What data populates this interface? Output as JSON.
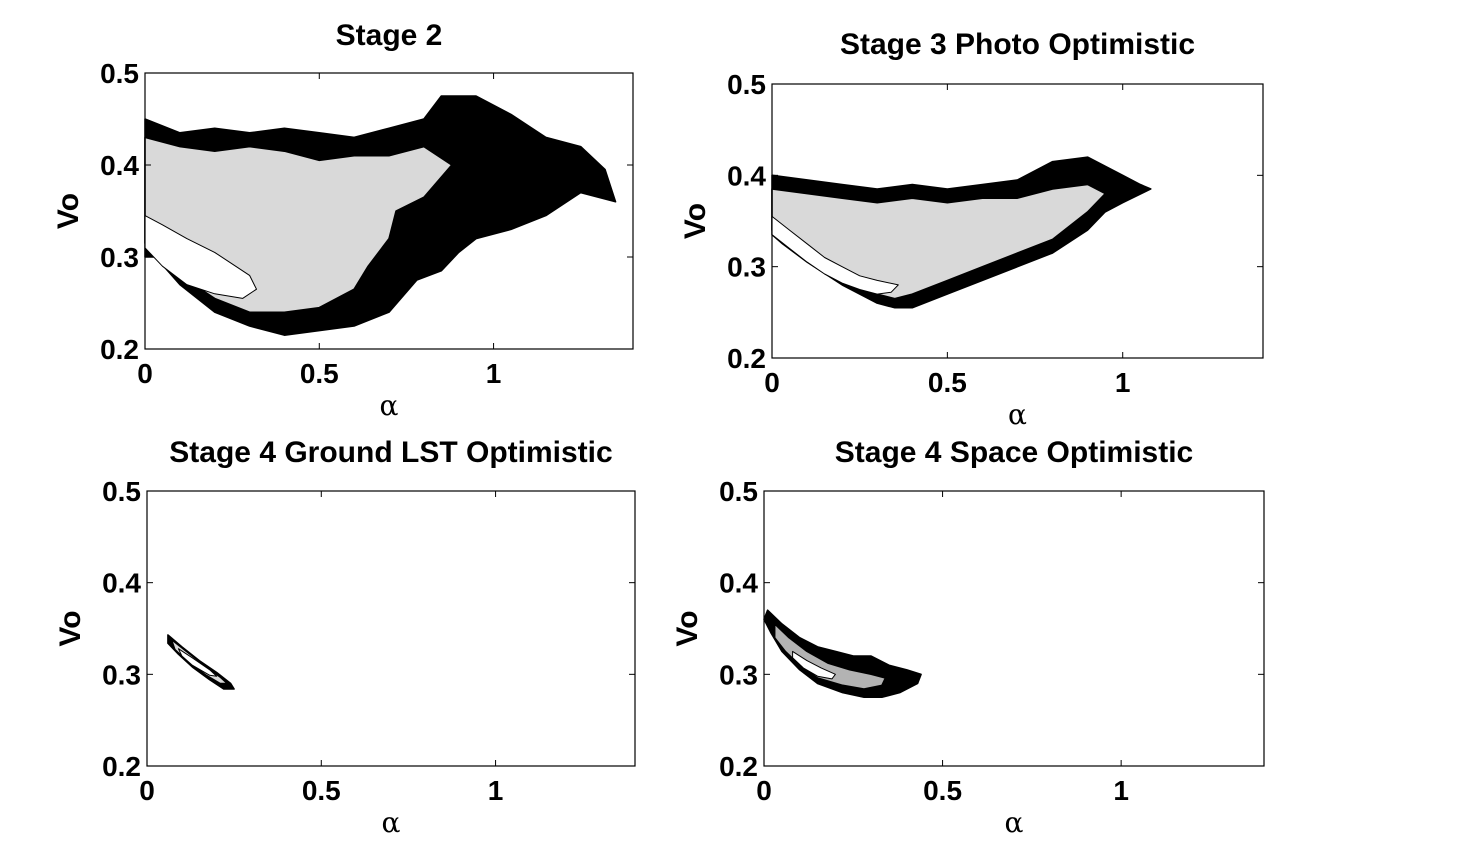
{
  "chart_data": [
    {
      "type": "contour",
      "title": "Stage 2",
      "xlabel": "α",
      "ylabel": "Vo",
      "xlim": [
        0,
        1.4
      ],
      "ylim": [
        0.2,
        0.5
      ],
      "xticks": [
        0,
        0.5,
        1
      ],
      "xtick_labels": [
        "0",
        "0.5",
        "1"
      ],
      "yticks": [
        0.2,
        0.3,
        0.4,
        0.5
      ],
      "ytick_labels": [
        "0.2",
        "0.3",
        "0.4",
        "0.5"
      ],
      "regions": [
        {
          "level": "outer",
          "color": "#000000",
          "points": [
            [
              0,
              0.45
            ],
            [
              0.1,
              0.435
            ],
            [
              0.2,
              0.44
            ],
            [
              0.3,
              0.435
            ],
            [
              0.4,
              0.44
            ],
            [
              0.5,
              0.435
            ],
            [
              0.6,
              0.43
            ],
            [
              0.7,
              0.44
            ],
            [
              0.8,
              0.45
            ],
            [
              0.85,
              0.475
            ],
            [
              0.95,
              0.475
            ],
            [
              1.05,
              0.455
            ],
            [
              1.15,
              0.43
            ],
            [
              1.25,
              0.42
            ],
            [
              1.32,
              0.395
            ],
            [
              1.35,
              0.36
            ],
            [
              1.25,
              0.37
            ],
            [
              1.15,
              0.345
            ],
            [
              1.05,
              0.33
            ],
            [
              0.95,
              0.32
            ],
            [
              0.9,
              0.305
            ],
            [
              0.85,
              0.285
            ],
            [
              0.78,
              0.275
            ],
            [
              0.7,
              0.24
            ],
            [
              0.6,
              0.225
            ],
            [
              0.5,
              0.22
            ],
            [
              0.4,
              0.215
            ],
            [
              0.3,
              0.225
            ],
            [
              0.2,
              0.24
            ],
            [
              0.1,
              0.27
            ],
            [
              0.03,
              0.3
            ],
            [
              0,
              0.3
            ]
          ]
        },
        {
          "level": "middle",
          "color": "#d9d9d9",
          "points": [
            [
              0,
              0.43
            ],
            [
              0.1,
              0.42
            ],
            [
              0.2,
              0.415
            ],
            [
              0.3,
              0.42
            ],
            [
              0.4,
              0.415
            ],
            [
              0.5,
              0.405
            ],
            [
              0.6,
              0.41
            ],
            [
              0.7,
              0.41
            ],
            [
              0.8,
              0.42
            ],
            [
              0.88,
              0.4
            ],
            [
              0.8,
              0.365
            ],
            [
              0.72,
              0.35
            ],
            [
              0.7,
              0.32
            ],
            [
              0.64,
              0.29
            ],
            [
              0.6,
              0.265
            ],
            [
              0.5,
              0.245
            ],
            [
              0.4,
              0.24
            ],
            [
              0.3,
              0.24
            ],
            [
              0.2,
              0.255
            ],
            [
              0.1,
              0.28
            ],
            [
              0.03,
              0.305
            ],
            [
              0,
              0.315
            ]
          ]
        },
        {
          "level": "inner",
          "color": "#ffffff",
          "points": [
            [
              0,
              0.345
            ],
            [
              0.05,
              0.335
            ],
            [
              0.12,
              0.32
            ],
            [
              0.2,
              0.305
            ],
            [
              0.26,
              0.29
            ],
            [
              0.3,
              0.28
            ],
            [
              0.32,
              0.265
            ],
            [
              0.28,
              0.255
            ],
            [
              0.2,
              0.26
            ],
            [
              0.12,
              0.27
            ],
            [
              0.05,
              0.29
            ],
            [
              0,
              0.31
            ]
          ]
        }
      ]
    },
    {
      "type": "contour",
      "title": "Stage 3 Photo Optimistic",
      "xlabel": "α",
      "ylabel": "Vo",
      "xlim": [
        0,
        1.4
      ],
      "ylim": [
        0.2,
        0.5
      ],
      "xticks": [
        0,
        0.5,
        1
      ],
      "xtick_labels": [
        "0",
        "0.5",
        "1"
      ],
      "yticks": [
        0.2,
        0.3,
        0.4,
        0.5
      ],
      "ytick_labels": [
        "0.2",
        "0.3",
        "0.4",
        "0.5"
      ],
      "regions": [
        {
          "level": "outer",
          "color": "#000000",
          "points": [
            [
              0,
              0.4
            ],
            [
              0.1,
              0.395
            ],
            [
              0.2,
              0.39
            ],
            [
              0.3,
              0.385
            ],
            [
              0.4,
              0.39
            ],
            [
              0.5,
              0.385
            ],
            [
              0.6,
              0.39
            ],
            [
              0.7,
              0.395
            ],
            [
              0.8,
              0.415
            ],
            [
              0.9,
              0.42
            ],
            [
              1.0,
              0.4
            ],
            [
              1.05,
              0.39
            ],
            [
              1.08,
              0.385
            ],
            [
              1.0,
              0.37
            ],
            [
              0.95,
              0.36
            ],
            [
              0.9,
              0.34
            ],
            [
              0.8,
              0.315
            ],
            [
              0.7,
              0.3
            ],
            [
              0.6,
              0.285
            ],
            [
              0.5,
              0.27
            ],
            [
              0.4,
              0.255
            ],
            [
              0.35,
              0.255
            ],
            [
              0.3,
              0.26
            ],
            [
              0.2,
              0.28
            ],
            [
              0.1,
              0.305
            ],
            [
              0.03,
              0.325
            ],
            [
              0,
              0.335
            ]
          ]
        },
        {
          "level": "middle",
          "color": "#d9d9d9",
          "points": [
            [
              0,
              0.385
            ],
            [
              0.1,
              0.38
            ],
            [
              0.2,
              0.375
            ],
            [
              0.3,
              0.37
            ],
            [
              0.4,
              0.375
            ],
            [
              0.5,
              0.37
            ],
            [
              0.6,
              0.375
            ],
            [
              0.7,
              0.375
            ],
            [
              0.8,
              0.385
            ],
            [
              0.9,
              0.39
            ],
            [
              0.95,
              0.38
            ],
            [
              0.9,
              0.36
            ],
            [
              0.8,
              0.33
            ],
            [
              0.7,
              0.315
            ],
            [
              0.6,
              0.3
            ],
            [
              0.5,
              0.285
            ],
            [
              0.4,
              0.27
            ],
            [
              0.35,
              0.265
            ],
            [
              0.3,
              0.27
            ],
            [
              0.2,
              0.29
            ],
            [
              0.1,
              0.31
            ],
            [
              0.03,
              0.33
            ],
            [
              0,
              0.34
            ]
          ]
        },
        {
          "level": "inner",
          "color": "#ffffff",
          "points": [
            [
              0,
              0.355
            ],
            [
              0.05,
              0.34
            ],
            [
              0.1,
              0.325
            ],
            [
              0.15,
              0.31
            ],
            [
              0.2,
              0.3
            ],
            [
              0.25,
              0.29
            ],
            [
              0.3,
              0.285
            ],
            [
              0.36,
              0.28
            ],
            [
              0.34,
              0.272
            ],
            [
              0.3,
              0.27
            ],
            [
              0.25,
              0.275
            ],
            [
              0.2,
              0.282
            ],
            [
              0.15,
              0.292
            ],
            [
              0.1,
              0.305
            ],
            [
              0.05,
              0.32
            ],
            [
              0,
              0.335
            ]
          ]
        }
      ]
    },
    {
      "type": "contour",
      "title": "Stage 4 Ground LST Optimistic",
      "xlabel": "α",
      "ylabel": "Vo",
      "xlim": [
        0,
        1.4
      ],
      "ylim": [
        0.2,
        0.5
      ],
      "xticks": [
        0,
        0.5,
        1
      ],
      "xtick_labels": [
        "0",
        "0.5",
        "1"
      ],
      "yticks": [
        0.2,
        0.3,
        0.4,
        0.5
      ],
      "ytick_labels": [
        "0.2",
        "0.3",
        "0.4",
        "0.5"
      ],
      "regions": [
        {
          "level": "outer",
          "color": "#000000",
          "points": [
            [
              0.06,
              0.343
            ],
            [
              0.1,
              0.33
            ],
            [
              0.15,
              0.315
            ],
            [
              0.2,
              0.302
            ],
            [
              0.24,
              0.29
            ],
            [
              0.25,
              0.284
            ],
            [
              0.22,
              0.284
            ],
            [
              0.18,
              0.294
            ],
            [
              0.13,
              0.308
            ],
            [
              0.09,
              0.322
            ],
            [
              0.06,
              0.334
            ]
          ]
        },
        {
          "level": "middle",
          "color": "#d9d9d9",
          "points": [
            [
              0.07,
              0.338
            ],
            [
              0.11,
              0.326
            ],
            [
              0.16,
              0.311
            ],
            [
              0.21,
              0.297
            ],
            [
              0.23,
              0.29
            ],
            [
              0.21,
              0.29
            ],
            [
              0.17,
              0.299
            ],
            [
              0.12,
              0.313
            ],
            [
              0.08,
              0.327
            ]
          ]
        },
        {
          "level": "inner",
          "color": "#ffffff",
          "points": [
            [
              0.09,
              0.328
            ],
            [
              0.13,
              0.318
            ],
            [
              0.18,
              0.305
            ],
            [
              0.2,
              0.298
            ],
            [
              0.18,
              0.299
            ],
            [
              0.13,
              0.31
            ],
            [
              0.1,
              0.32
            ]
          ]
        }
      ]
    },
    {
      "type": "contour",
      "title": "Stage 4 Space Optimistic",
      "xlabel": "α",
      "ylabel": "Vo",
      "xlim": [
        0,
        1.4
      ],
      "ylim": [
        0.2,
        0.5
      ],
      "xticks": [
        0,
        0.5,
        1
      ],
      "xtick_labels": [
        "0",
        "0.5",
        "1"
      ],
      "yticks": [
        0.2,
        0.3,
        0.4,
        0.5
      ],
      "ytick_labels": [
        "0.2",
        "0.3",
        "0.4",
        "0.5"
      ],
      "regions": [
        {
          "level": "outer",
          "color": "#000000",
          "points": [
            [
              0.01,
              0.37
            ],
            [
              0.05,
              0.355
            ],
            [
              0.1,
              0.34
            ],
            [
              0.15,
              0.33
            ],
            [
              0.2,
              0.325
            ],
            [
              0.25,
              0.32
            ],
            [
              0.3,
              0.32
            ],
            [
              0.35,
              0.31
            ],
            [
              0.4,
              0.305
            ],
            [
              0.44,
              0.3
            ],
            [
              0.43,
              0.29
            ],
            [
              0.38,
              0.28
            ],
            [
              0.33,
              0.275
            ],
            [
              0.28,
              0.275
            ],
            [
              0.22,
              0.28
            ],
            [
              0.15,
              0.29
            ],
            [
              0.1,
              0.305
            ],
            [
              0.05,
              0.325
            ],
            [
              0.02,
              0.345
            ],
            [
              0,
              0.36
            ]
          ]
        },
        {
          "level": "middle",
          "color": "#b3b3b3",
          "points": [
            [
              0.03,
              0.355
            ],
            [
              0.07,
              0.34
            ],
            [
              0.12,
              0.325
            ],
            [
              0.18,
              0.312
            ],
            [
              0.24,
              0.305
            ],
            [
              0.3,
              0.3
            ],
            [
              0.34,
              0.296
            ],
            [
              0.33,
              0.288
            ],
            [
              0.28,
              0.284
            ],
            [
              0.22,
              0.288
            ],
            [
              0.15,
              0.296
            ],
            [
              0.1,
              0.31
            ],
            [
              0.06,
              0.325
            ],
            [
              0.03,
              0.34
            ]
          ]
        },
        {
          "level": "inner",
          "color": "#ffffff",
          "points": [
            [
              0.08,
              0.325
            ],
            [
              0.12,
              0.315
            ],
            [
              0.16,
              0.307
            ],
            [
              0.2,
              0.3
            ],
            [
              0.19,
              0.295
            ],
            [
              0.15,
              0.298
            ],
            [
              0.11,
              0.307
            ],
            [
              0.08,
              0.318
            ]
          ]
        }
      ]
    }
  ]
}
